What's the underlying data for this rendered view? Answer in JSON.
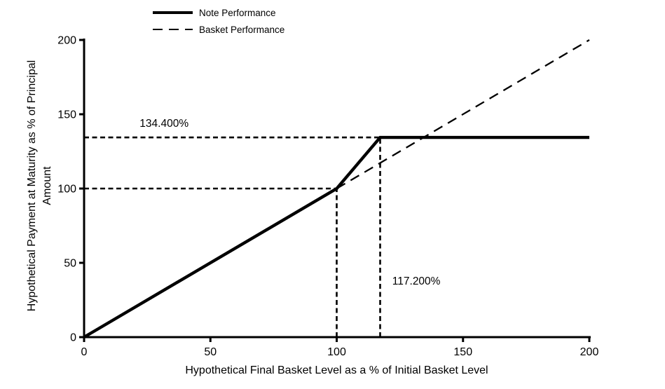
{
  "legend": {
    "items": [
      {
        "label": "Note Performance",
        "sample": "solid-thick-line"
      },
      {
        "label": "Basket Performance",
        "sample": "dashed-line"
      }
    ]
  },
  "colors": {
    "line": "#000000",
    "background": "#ffffff",
    "text": "#000000"
  },
  "chart_data": {
    "type": "line",
    "title": "",
    "xlabel": "Hypothetical Final Basket Level as a % of Initial Basket Level",
    "ylabel_lines": [
      "Hypothetical Payment at Maturity as % of Principal",
      "Amount"
    ],
    "xlim": [
      0,
      200
    ],
    "ylim": [
      0,
      200
    ],
    "x_ticks": [
      0,
      50,
      100,
      150,
      200
    ],
    "y_ticks": [
      0,
      50,
      100,
      150,
      200
    ],
    "grid": false,
    "legend_position": "top-left-above-plot",
    "series": [
      {
        "name": "Note Performance",
        "style": "solid",
        "width": 4.4,
        "points": [
          [
            0,
            0
          ],
          [
            100,
            100
          ],
          [
            117.2,
            134.4
          ],
          [
            200,
            134.4
          ]
        ]
      },
      {
        "name": "Basket Performance",
        "style": "dashed",
        "width": 2.3,
        "points": [
          [
            100,
            100
          ],
          [
            200,
            200
          ]
        ]
      }
    ],
    "reference_lines": [
      {
        "from": [
          0,
          134.4
        ],
        "to": [
          117.2,
          134.4
        ]
      },
      {
        "from": [
          0,
          100
        ],
        "to": [
          100,
          100
        ]
      },
      {
        "from": [
          100,
          0
        ],
        "to": [
          100,
          100
        ]
      },
      {
        "from": [
          117.2,
          0
        ],
        "to": [
          117.2,
          134.4
        ]
      }
    ],
    "annotations": [
      {
        "text": "134.400%",
        "x": 22,
        "y": 141.5
      },
      {
        "text": "117.200%",
        "x": 122,
        "y": 35.4
      }
    ]
  }
}
